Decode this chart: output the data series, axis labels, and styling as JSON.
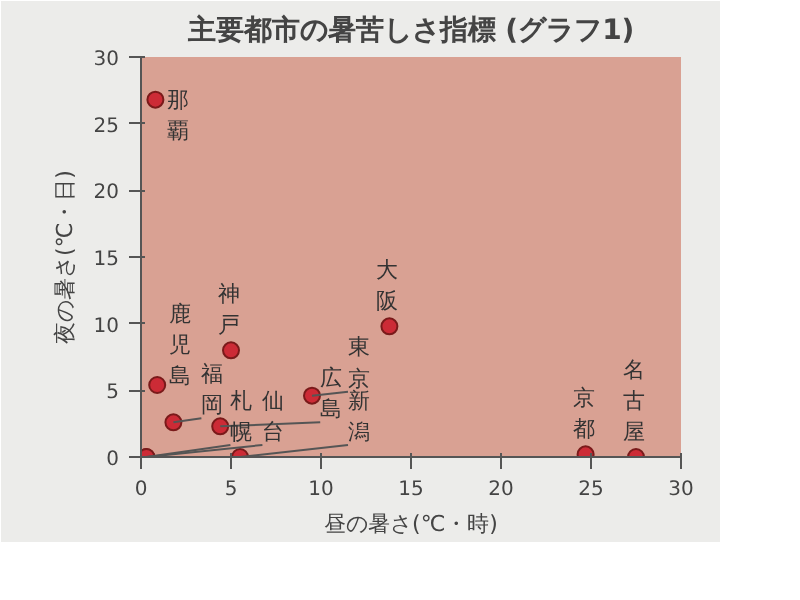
{
  "chart_data": {
    "type": "scatter",
    "title": "主要都市の暑苦しさ指標 (グラフ1)",
    "xlabel": "昼の暑さ(℃・時)",
    "ylabel": "夜の暑さ(℃・日)",
    "x": [
      0.8,
      0.9,
      1.8,
      0.3,
      0.3,
      5.0,
      4.4,
      5.5,
      9.5,
      13.8,
      24.7,
      27.5
    ],
    "series": [
      {
        "color": "#cc2b36",
        "values": [
          26.8,
          5.4,
          2.6,
          0,
          0,
          8.0,
          2.3,
          0,
          4.6,
          9.8,
          0.2,
          0
        ]
      }
    ],
    "marker": "circle",
    "xlim": [
      0,
      30
    ],
    "ylim": [
      0,
      30
    ],
    "xticks": [
      0,
      5,
      10,
      15,
      20,
      25,
      30
    ],
    "yticks": [
      0,
      5,
      10,
      15,
      20,
      25,
      30
    ],
    "annotations": [
      {
        "text": "那覇",
        "x": 0.8,
        "y": 26.8
      },
      {
        "text": "鹿児島",
        "x": 0.9,
        "y": 5.4
      },
      {
        "text": "福岡",
        "x": 1.8,
        "y": 2.6
      },
      {
        "text": "札幌",
        "x": 0.3,
        "y": 0
      },
      {
        "text": "仙台",
        "x": 0.3,
        "y": 0
      },
      {
        "text": "神戸",
        "x": 5.0,
        "y": 8.0
      },
      {
        "text": "広島",
        "x": 4.4,
        "y": 2.3
      },
      {
        "text": "新潟",
        "x": 5.5,
        "y": 0
      },
      {
        "text": "東京",
        "x": 9.5,
        "y": 4.6
      },
      {
        "text": "大阪",
        "x": 13.8,
        "y": 9.8
      },
      {
        "text": "京都",
        "x": 24.7,
        "y": 0.2
      },
      {
        "text": "名古屋",
        "x": 27.5,
        "y": 0
      }
    ],
    "grid": false
  }
}
